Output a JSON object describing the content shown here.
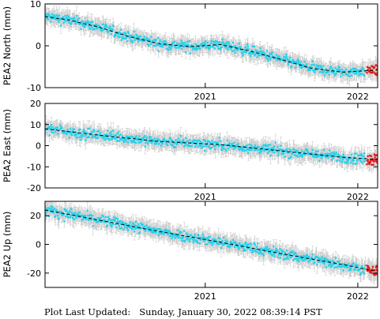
{
  "footer": {
    "label": "Plot Last Updated:",
    "value": "Sunday, January 30, 2022 08:39:14 PST"
  },
  "colors": {
    "daily": "#22d3ee",
    "rapid": "#e21b1b",
    "errorbar": "#c8c8c8",
    "model": "#000000",
    "frame": "#000000"
  },
  "chart_data": [
    {
      "type": "scatter",
      "ylabel": "PEA2 North (mm)",
      "ylim": [
        -10,
        10
      ],
      "yticks": [
        -10,
        0,
        10
      ],
      "x_ticks": [
        2021,
        2022
      ],
      "x_range": [
        2019.95,
        2022.13
      ],
      "grid": false,
      "trend": {
        "x": [
          2019.95,
          2020.1,
          2020.3,
          2020.5,
          2020.7,
          2020.9,
          2021.1,
          2021.3,
          2021.5,
          2021.7,
          2021.9,
          2022.13
        ],
        "y": [
          7.0,
          6.2,
          4.5,
          2.2,
          0.5,
          -0.2,
          0.3,
          -1.3,
          -3.3,
          -5.4,
          -6.3,
          -5.8
        ]
      },
      "series": [
        {
          "start_x": 2019.95,
          "end_x": 2022.05,
          "color": "#22d3ee",
          "count": 650
        },
        {
          "start_x": 2022.06,
          "end_x": 2022.13,
          "color": "#e21b1b",
          "count": 28
        }
      ]
    },
    {
      "type": "scatter",
      "ylabel": "PEA2 East (mm)",
      "ylim": [
        -20,
        20
      ],
      "yticks": [
        -20,
        -10,
        0,
        10,
        20
      ],
      "x_ticks": [
        2021,
        2022
      ],
      "x_range": [
        2019.95,
        2022.13
      ],
      "grid": false,
      "trend": {
        "x": [
          2019.95,
          2020.3,
          2020.7,
          2021.1,
          2021.5,
          2021.9,
          2022.13
        ],
        "y": [
          8.0,
          5.0,
          2.0,
          0.5,
          -2.5,
          -5.5,
          -6.5
        ]
      },
      "series": [
        {
          "start_x": 2019.95,
          "end_x": 2022.05,
          "color": "#22d3ee",
          "count": 650
        },
        {
          "start_x": 2022.06,
          "end_x": 2022.13,
          "color": "#e21b1b",
          "count": 28
        }
      ]
    },
    {
      "type": "scatter",
      "ylabel": "PEA2 Up (mm)",
      "ylim": [
        -30,
        30
      ],
      "yticks": [
        -20,
        0,
        20
      ],
      "x_ticks": [
        2021,
        2022
      ],
      "x_range": [
        2019.95,
        2022.13
      ],
      "grid": false,
      "trend": {
        "x": [
          2019.95,
          2020.3,
          2020.7,
          2021.1,
          2021.5,
          2021.9,
          2022.13
        ],
        "y": [
          24.0,
          17.0,
          9.0,
          1.5,
          -6.5,
          -14.0,
          -19.0
        ]
      },
      "series": [
        {
          "start_x": 2019.95,
          "end_x": 2022.05,
          "color": "#22d3ee",
          "count": 650
        },
        {
          "start_x": 2022.06,
          "end_x": 2022.13,
          "color": "#e21b1b",
          "count": 28
        }
      ]
    }
  ]
}
